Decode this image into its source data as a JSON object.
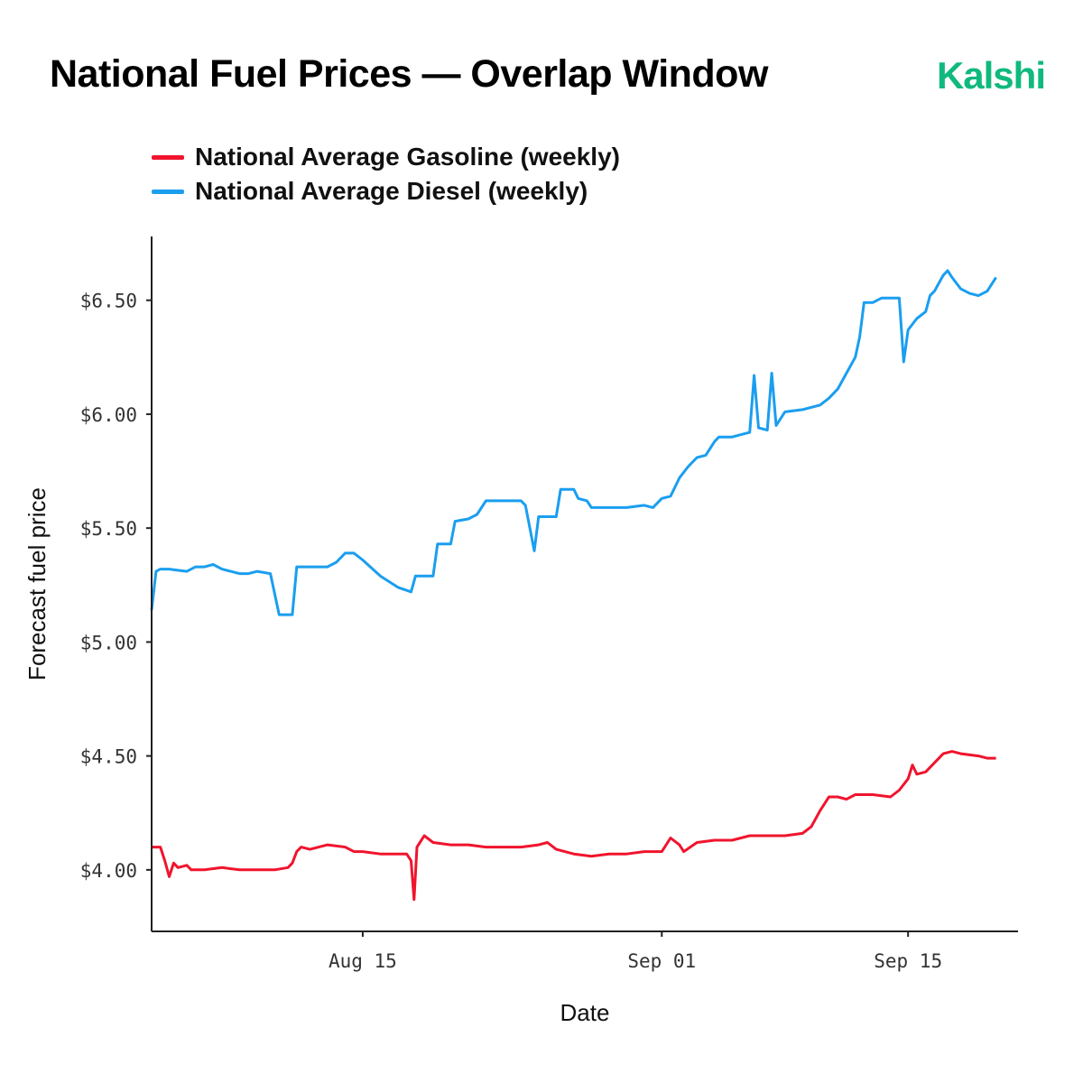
{
  "header": {
    "title": "National Fuel Prices — Overlap Window",
    "brand": "Kalshi",
    "brand_color": "#10b97d"
  },
  "chart_data": {
    "type": "line",
    "xlabel": "Date",
    "ylabel": "Forecast fuel price",
    "xlim": [
      "2022-08-04",
      "2022-09-20"
    ],
    "ylim": [
      3.73,
      6.78
    ],
    "x_ticks": [
      {
        "date": "2022-08-15",
        "label": "Aug 15"
      },
      {
        "date": "2022-09-01",
        "label": "Sep 01"
      },
      {
        "date": "2022-09-15",
        "label": "Sep 15"
      }
    ],
    "y_ticks": [
      {
        "value": 4.0,
        "label": "$4.00"
      },
      {
        "value": 4.5,
        "label": "$4.50"
      },
      {
        "value": 5.0,
        "label": "$5.00"
      },
      {
        "value": 5.5,
        "label": "$5.50"
      },
      {
        "value": 6.0,
        "label": "$6.00"
      },
      {
        "value": 6.5,
        "label": "$6.50"
      }
    ],
    "grid": false,
    "legend_position": "top-left",
    "series": [
      {
        "name": "National Average Gasoline (weekly)",
        "color": "#f0142d",
        "points": [
          [
            "2022-08-03 00:00",
            4.1
          ],
          [
            "2022-08-03 12:00",
            4.1
          ],
          [
            "2022-08-03 18:00",
            4.04
          ],
          [
            "2022-08-04 00:00",
            3.97
          ],
          [
            "2022-08-04 06:00",
            4.03
          ],
          [
            "2022-08-04 12:00",
            4.01
          ],
          [
            "2022-08-05 00:00",
            4.02
          ],
          [
            "2022-08-05 06:00",
            4.0
          ],
          [
            "2022-08-06 00:00",
            4.0
          ],
          [
            "2022-08-07 00:00",
            4.01
          ],
          [
            "2022-08-08 00:00",
            4.0
          ],
          [
            "2022-08-09 00:00",
            4.0
          ],
          [
            "2022-08-10 00:00",
            4.0
          ],
          [
            "2022-08-10 18:00",
            4.01
          ],
          [
            "2022-08-11 00:00",
            4.03
          ],
          [
            "2022-08-11 06:00",
            4.08
          ],
          [
            "2022-08-11 12:00",
            4.1
          ],
          [
            "2022-08-12 00:00",
            4.09
          ],
          [
            "2022-08-13 00:00",
            4.11
          ],
          [
            "2022-08-14 00:00",
            4.1
          ],
          [
            "2022-08-14 12:00",
            4.08
          ],
          [
            "2022-08-15 00:00",
            4.08
          ],
          [
            "2022-08-16 00:00",
            4.07
          ],
          [
            "2022-08-17 00:00",
            4.07
          ],
          [
            "2022-08-17 12:00",
            4.07
          ],
          [
            "2022-08-17 18:00",
            4.04
          ],
          [
            "2022-08-17 22:00",
            3.87
          ],
          [
            "2022-08-18 02:00",
            4.1
          ],
          [
            "2022-08-18 06:00",
            4.12
          ],
          [
            "2022-08-18 12:00",
            4.15
          ],
          [
            "2022-08-19 00:00",
            4.12
          ],
          [
            "2022-08-20 00:00",
            4.11
          ],
          [
            "2022-08-21 00:00",
            4.11
          ],
          [
            "2022-08-22 00:00",
            4.1
          ],
          [
            "2022-08-23 00:00",
            4.1
          ],
          [
            "2022-08-24 00:00",
            4.1
          ],
          [
            "2022-08-25 00:00",
            4.11
          ],
          [
            "2022-08-25 12:00",
            4.12
          ],
          [
            "2022-08-26 00:00",
            4.09
          ],
          [
            "2022-08-27 00:00",
            4.07
          ],
          [
            "2022-08-28 00:00",
            4.06
          ],
          [
            "2022-08-29 00:00",
            4.07
          ],
          [
            "2022-08-30 00:00",
            4.07
          ],
          [
            "2022-08-31 00:00",
            4.08
          ],
          [
            "2022-09-01 00:00",
            4.08
          ],
          [
            "2022-09-01 12:00",
            4.14
          ],
          [
            "2022-09-02 00:00",
            4.11
          ],
          [
            "2022-09-02 06:00",
            4.08
          ],
          [
            "2022-09-03 00:00",
            4.12
          ],
          [
            "2022-09-04 00:00",
            4.13
          ],
          [
            "2022-09-05 00:00",
            4.13
          ],
          [
            "2022-09-06 00:00",
            4.15
          ],
          [
            "2022-09-07 00:00",
            4.15
          ],
          [
            "2022-09-08 00:00",
            4.15
          ],
          [
            "2022-09-09 00:00",
            4.16
          ],
          [
            "2022-09-09 12:00",
            4.19
          ],
          [
            "2022-09-10 00:00",
            4.26
          ],
          [
            "2022-09-10 12:00",
            4.32
          ],
          [
            "2022-09-11 00:00",
            4.32
          ],
          [
            "2022-09-11 12:00",
            4.31
          ],
          [
            "2022-09-12 00:00",
            4.33
          ],
          [
            "2022-09-13 00:00",
            4.33
          ],
          [
            "2022-09-14 00:00",
            4.32
          ],
          [
            "2022-09-14 12:00",
            4.35
          ],
          [
            "2022-09-15 00:00",
            4.4
          ],
          [
            "2022-09-15 06:00",
            4.46
          ],
          [
            "2022-09-15 12:00",
            4.42
          ],
          [
            "2022-09-16 00:00",
            4.43
          ],
          [
            "2022-09-16 12:00",
            4.47
          ],
          [
            "2022-09-17 00:00",
            4.51
          ],
          [
            "2022-09-17 12:00",
            4.52
          ],
          [
            "2022-09-18 00:00",
            4.51
          ],
          [
            "2022-09-19 00:00",
            4.5
          ],
          [
            "2022-09-19 12:00",
            4.49
          ],
          [
            "2022-09-20 00:00",
            4.49
          ]
        ]
      },
      {
        "name": "National Average Diesel (weekly)",
        "color": "#1a9ef0",
        "points": [
          [
            "2022-08-03 00:00",
            5.14
          ],
          [
            "2022-08-03 06:00",
            5.31
          ],
          [
            "2022-08-03 12:00",
            5.32
          ],
          [
            "2022-08-04 00:00",
            5.32
          ],
          [
            "2022-08-05 00:00",
            5.31
          ],
          [
            "2022-08-05 12:00",
            5.33
          ],
          [
            "2022-08-06 00:00",
            5.33
          ],
          [
            "2022-08-06 12:00",
            5.34
          ],
          [
            "2022-08-07 00:00",
            5.32
          ],
          [
            "2022-08-07 12:00",
            5.31
          ],
          [
            "2022-08-08 00:00",
            5.3
          ],
          [
            "2022-08-08 12:00",
            5.3
          ],
          [
            "2022-08-09 00:00",
            5.31
          ],
          [
            "2022-08-09 18:00",
            5.3
          ],
          [
            "2022-08-10 06:00",
            5.12
          ],
          [
            "2022-08-11 00:00",
            5.12
          ],
          [
            "2022-08-11 06:00",
            5.33
          ],
          [
            "2022-08-12 00:00",
            5.33
          ],
          [
            "2022-08-13 00:00",
            5.33
          ],
          [
            "2022-08-13 12:00",
            5.35
          ],
          [
            "2022-08-14 00:00",
            5.39
          ],
          [
            "2022-08-14 12:00",
            5.39
          ],
          [
            "2022-08-15 00:00",
            5.36
          ],
          [
            "2022-08-16 00:00",
            5.29
          ],
          [
            "2022-08-17 00:00",
            5.24
          ],
          [
            "2022-08-17 18:00",
            5.22
          ],
          [
            "2022-08-18 00:00",
            5.29
          ],
          [
            "2022-08-18 12:00",
            5.29
          ],
          [
            "2022-08-19 00:00",
            5.29
          ],
          [
            "2022-08-19 06:00",
            5.43
          ],
          [
            "2022-08-20 00:00",
            5.43
          ],
          [
            "2022-08-20 06:00",
            5.53
          ],
          [
            "2022-08-21 00:00",
            5.54
          ],
          [
            "2022-08-21 12:00",
            5.56
          ],
          [
            "2022-08-22 00:00",
            5.62
          ],
          [
            "2022-08-23 00:00",
            5.62
          ],
          [
            "2022-08-24 00:00",
            5.62
          ],
          [
            "2022-08-24 06:00",
            5.6
          ],
          [
            "2022-08-24 18:00",
            5.4
          ],
          [
            "2022-08-25 00:00",
            5.55
          ],
          [
            "2022-08-25 12:00",
            5.55
          ],
          [
            "2022-08-26 00:00",
            5.55
          ],
          [
            "2022-08-26 06:00",
            5.67
          ],
          [
            "2022-08-27 00:00",
            5.67
          ],
          [
            "2022-08-27 06:00",
            5.63
          ],
          [
            "2022-08-27 18:00",
            5.62
          ],
          [
            "2022-08-28 00:00",
            5.59
          ],
          [
            "2022-08-29 00:00",
            5.59
          ],
          [
            "2022-08-30 00:00",
            5.59
          ],
          [
            "2022-08-31 00:00",
            5.6
          ],
          [
            "2022-08-31 12:00",
            5.59
          ],
          [
            "2022-09-01 00:00",
            5.63
          ],
          [
            "2022-09-01 12:00",
            5.64
          ],
          [
            "2022-09-02 00:00",
            5.72
          ],
          [
            "2022-09-02 12:00",
            5.77
          ],
          [
            "2022-09-03 00:00",
            5.81
          ],
          [
            "2022-09-03 12:00",
            5.82
          ],
          [
            "2022-09-04 00:00",
            5.88
          ],
          [
            "2022-09-04 06:00",
            5.9
          ],
          [
            "2022-09-05 00:00",
            5.9
          ],
          [
            "2022-09-05 12:00",
            5.91
          ],
          [
            "2022-09-06 00:00",
            5.92
          ],
          [
            "2022-09-06 06:00",
            6.17
          ],
          [
            "2022-09-06 12:00",
            5.94
          ],
          [
            "2022-09-07 00:00",
            5.93
          ],
          [
            "2022-09-07 06:00",
            6.18
          ],
          [
            "2022-09-07 12:00",
            5.95
          ],
          [
            "2022-09-08 00:00",
            6.01
          ],
          [
            "2022-09-09 00:00",
            6.02
          ],
          [
            "2022-09-10 00:00",
            6.04
          ],
          [
            "2022-09-10 12:00",
            6.07
          ],
          [
            "2022-09-11 00:00",
            6.11
          ],
          [
            "2022-09-11 12:00",
            6.18
          ],
          [
            "2022-09-12 00:00",
            6.25
          ],
          [
            "2022-09-12 06:00",
            6.34
          ],
          [
            "2022-09-12 12:00",
            6.49
          ],
          [
            "2022-09-13 00:00",
            6.49
          ],
          [
            "2022-09-13 12:00",
            6.51
          ],
          [
            "2022-09-14 00:00",
            6.51
          ],
          [
            "2022-09-14 12:00",
            6.51
          ],
          [
            "2022-09-14 18:00",
            6.23
          ],
          [
            "2022-09-15 00:00",
            6.37
          ],
          [
            "2022-09-15 12:00",
            6.42
          ],
          [
            "2022-09-16 00:00",
            6.45
          ],
          [
            "2022-09-16 06:00",
            6.52
          ],
          [
            "2022-09-16 12:00",
            6.54
          ],
          [
            "2022-09-17 00:00",
            6.61
          ],
          [
            "2022-09-17 06:00",
            6.63
          ],
          [
            "2022-09-17 12:00",
            6.6
          ],
          [
            "2022-09-18 00:00",
            6.55
          ],
          [
            "2022-09-18 12:00",
            6.53
          ],
          [
            "2022-09-19 00:00",
            6.52
          ],
          [
            "2022-09-19 12:00",
            6.54
          ],
          [
            "2022-09-20 00:00",
            6.6
          ]
        ]
      }
    ]
  }
}
